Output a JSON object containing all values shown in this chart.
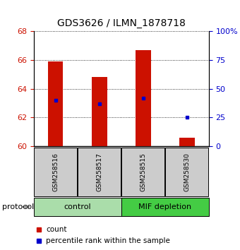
{
  "title": "GDS3626 / ILMN_1878718",
  "samples": [
    "GSM258516",
    "GSM258517",
    "GSM258515",
    "GSM258530"
  ],
  "bar_values": [
    65.9,
    64.8,
    66.7,
    60.6
  ],
  "bar_base": 60,
  "percentile_ranks": [
    40,
    37,
    42,
    25
  ],
  "bar_color": "#cc1100",
  "pct_color": "#0000cc",
  "ylim": [
    60,
    68
  ],
  "y_ticks": [
    60,
    62,
    64,
    66,
    68
  ],
  "y_right_ticks": [
    0,
    25,
    50,
    75,
    100
  ],
  "y_right_labels": [
    "0",
    "25",
    "50",
    "75",
    "100%"
  ],
  "groups": [
    {
      "label": "control",
      "indices": [
        0,
        1
      ],
      "color": "#aaddaa"
    },
    {
      "label": "MIF depletion",
      "indices": [
        2,
        3
      ],
      "color": "#44cc44"
    }
  ],
  "protocol_label": "protocol",
  "legend_count_label": "count",
  "legend_pct_label": "percentile rank within the sample",
  "bar_width": 0.35,
  "tick_label_color_left": "#cc1100",
  "tick_label_color_right": "#0000cc",
  "sample_box_color": "#cccccc",
  "title_fontsize": 10,
  "axis_fontsize": 8,
  "legend_fontsize": 7.5
}
